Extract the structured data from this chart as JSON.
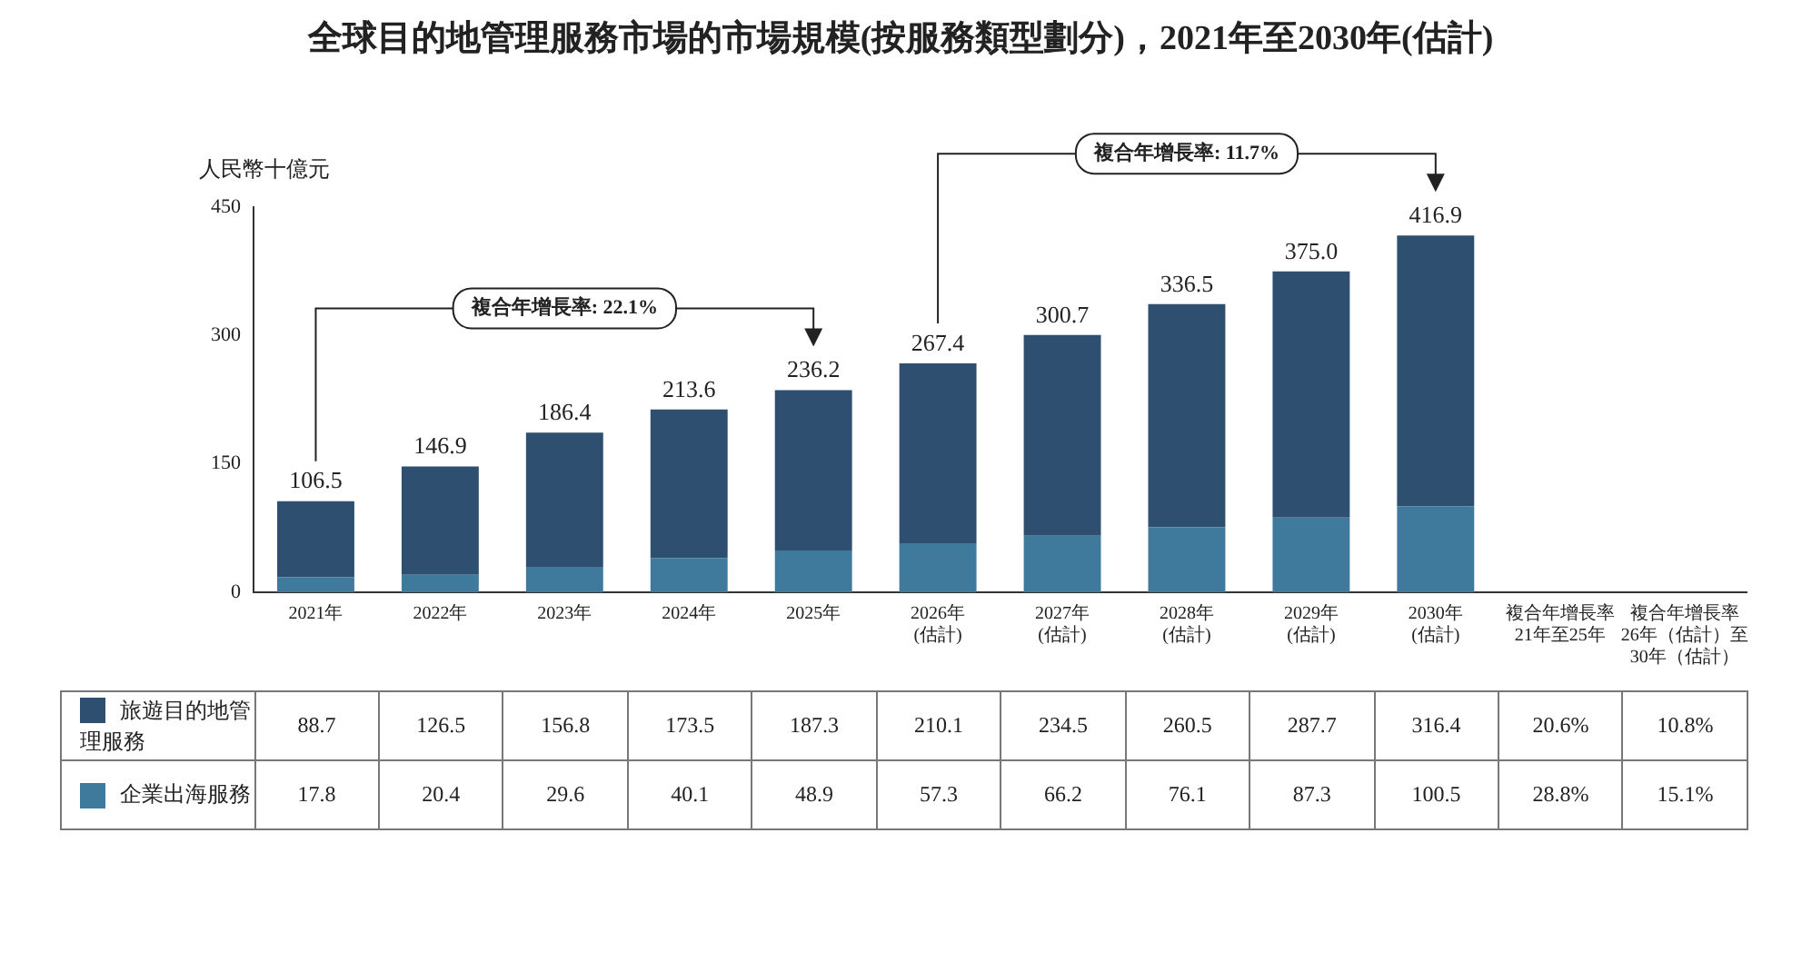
{
  "chart_data": {
    "type": "bar",
    "title": "全球目的地管理服務市場的市場規模(按服務類型劃分)，2021年至2030年(估計)",
    "ylabel": "人民幣十億元",
    "categories": [
      "2021年",
      "2022年",
      "2023年",
      "2024年",
      "2025年",
      "2026年\n(估計)",
      "2027年\n(估計)",
      "2028年\n(估計)",
      "2029年\n(估計)",
      "2030年\n(估計)",
      "複合年增長率\n21年至25年",
      "複合年增長率\n26年（估計）至\n30年（估計）"
    ],
    "stacked": true,
    "ylim": [
      0,
      450
    ],
    "yticks": [
      0,
      150,
      300,
      450
    ],
    "legend": "bottom",
    "series": [
      {
        "name": "企業出海服務",
        "color": "#3f7a9c",
        "values": [
          17.8,
          20.4,
          29.6,
          40.1,
          48.9,
          57.3,
          66.2,
          76.1,
          87.3,
          100.5,
          null,
          null
        ],
        "value_labels": [
          "17.8",
          "20.4",
          "29.6",
          "40.1",
          "48.9",
          "57.3",
          "66.2",
          "76.1",
          "87.3",
          "100.5",
          "28.8%",
          "15.1%"
        ]
      },
      {
        "name": "旅遊目的地管理服務",
        "color": "#2e4f6f",
        "values": [
          88.7,
          126.5,
          156.8,
          173.5,
          187.3,
          210.1,
          234.5,
          260.5,
          287.7,
          316.4,
          null,
          null
        ],
        "value_labels": [
          "88.7",
          "126.5",
          "156.8",
          "173.5",
          "187.3",
          "210.1",
          "234.5",
          "260.5",
          "287.7",
          "316.4",
          "20.6%",
          "10.8%"
        ]
      }
    ],
    "totals": [
      "106.5",
      "146.9",
      "186.4",
      "213.6",
      "236.2",
      "267.4",
      "300.7",
      "336.5",
      "375.0",
      "416.9",
      null,
      null
    ],
    "annotations": [
      "複合年增長率: 22.1%",
      "複合年增長率: 11.7%"
    ]
  }
}
